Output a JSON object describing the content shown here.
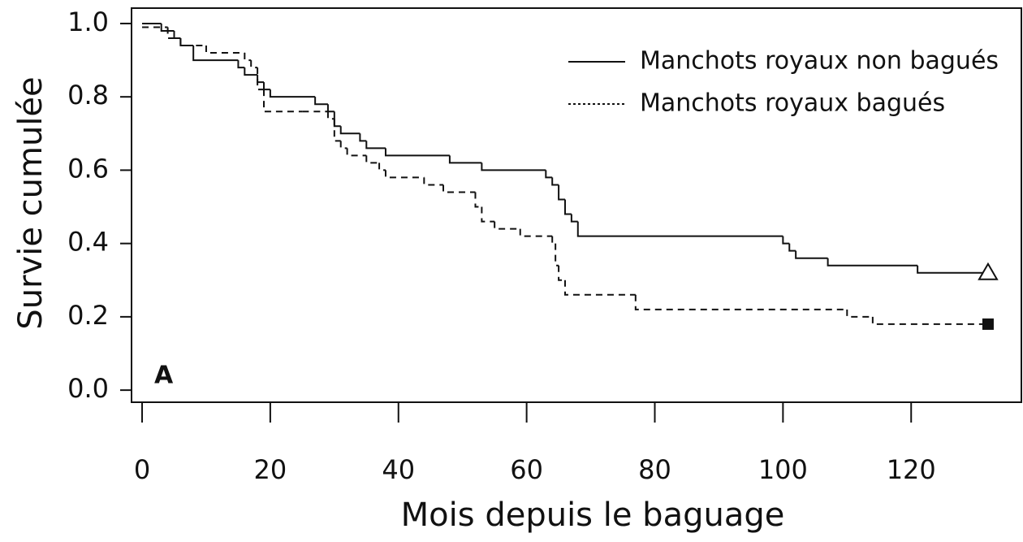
{
  "chart_data": {
    "type": "step",
    "xlabel": "Mois depuis le baguage",
    "ylabel": "Survie cumulée",
    "annotation": "A",
    "legend": "upper right",
    "xlim": [
      -1.65,
      137.2
    ],
    "ylim": [
      -0.033,
      1.042
    ],
    "xticks": [
      0,
      20,
      40,
      60,
      80,
      100,
      120
    ],
    "yticks": [
      {
        "value": 0,
        "label": "0.0"
      },
      0.2,
      0.4,
      0.6,
      0.8,
      {
        "value": 1,
        "label": "1.0"
      }
    ],
    "series": [
      {
        "name": "Manchots royaux non bagués",
        "color": "#111111",
        "dash": "solid",
        "end_marker": "triangle",
        "x": [
          0,
          3,
          5,
          6,
          8,
          15,
          16,
          18,
          19,
          20,
          27,
          29,
          30,
          31,
          34,
          35,
          38,
          48,
          53,
          63,
          64,
          65,
          66,
          67,
          68,
          100,
          101,
          102,
          107,
          121,
          132
        ],
        "values": [
          1.0,
          0.98,
          0.96,
          0.94,
          0.9,
          0.88,
          0.86,
          0.84,
          0.82,
          0.8,
          0.78,
          0.76,
          0.72,
          0.7,
          0.68,
          0.66,
          0.64,
          0.62,
          0.6,
          0.58,
          0.56,
          0.52,
          0.48,
          0.46,
          0.42,
          0.4,
          0.38,
          0.36,
          0.34,
          0.32,
          0.32
        ]
      },
      {
        "name": "Manchots royaux bagués",
        "color": "#111111",
        "dash": "dashed",
        "end_marker": "square",
        "x": [
          0,
          4,
          6,
          10,
          16,
          17,
          18,
          19,
          25,
          29,
          30,
          31,
          32,
          35,
          37,
          38,
          44,
          47,
          52,
          53,
          55,
          59,
          64,
          64.5,
          65,
          66,
          77,
          110,
          114,
          132
        ],
        "values": [
          0.99,
          0.96,
          0.94,
          0.92,
          0.9,
          0.88,
          0.82,
          0.76,
          0.76,
          0.74,
          0.68,
          0.66,
          0.64,
          0.62,
          0.6,
          0.58,
          0.56,
          0.54,
          0.5,
          0.46,
          0.44,
          0.42,
          0.4,
          0.34,
          0.3,
          0.26,
          0.22,
          0.2,
          0.18,
          0.18
        ]
      }
    ]
  }
}
